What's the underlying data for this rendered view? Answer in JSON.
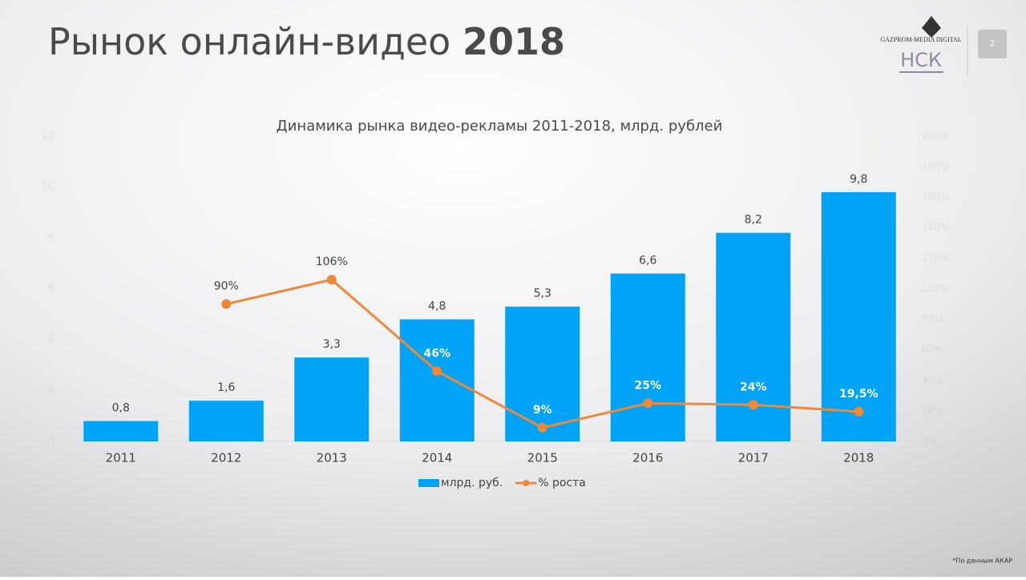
{
  "slide": {
    "title": "Рынок онлайн-видео",
    "title_year": "2018",
    "logo_top": "GAZPROM-MEDIA DIGITAL",
    "logo": "НСК",
    "page_number": "2",
    "footnote": "*По данным АКАР"
  },
  "chart_data": {
    "type": "bar",
    "title": "Динамика рынка видео-рекламы 2011-2018, млрд. рублей",
    "categories": [
      "2011",
      "2012",
      "2013",
      "2014",
      "2015",
      "2016",
      "2017",
      "2018"
    ],
    "series": [
      {
        "name": "млрд. руб.",
        "type": "bar",
        "color": "#00a3f5",
        "values": [
          0.8,
          1.6,
          3.3,
          4.8,
          5.3,
          6.6,
          8.2,
          9.8
        ],
        "value_labels": [
          "0,8",
          "1,6",
          "3,3",
          "4,8",
          "5,3",
          "6,6",
          "8,2",
          "9,8"
        ]
      },
      {
        "name": "% роста",
        "type": "line",
        "axis": "y2",
        "color": "#f0883a",
        "values": [
          null,
          90,
          106,
          46,
          9,
          25,
          24,
          19.5
        ],
        "value_labels": [
          null,
          "90%",
          "106%",
          "46%",
          "9%",
          "25%",
          "24%",
          "19,5%"
        ]
      }
    ],
    "ylim": [
      0,
      12
    ],
    "yticks": [
      0,
      2,
      4,
      6,
      8,
      10,
      12
    ],
    "y2lim": [
      0,
      200
    ],
    "y2ticks": [
      {
        "value": 0,
        "label": "0%"
      },
      {
        "value": 20,
        "label": "20%"
      },
      {
        "value": 40,
        "label": "40%"
      },
      {
        "value": 60,
        "label": "60%"
      },
      {
        "value": 80,
        "label": "80%"
      },
      {
        "value": 100,
        "label": "100%"
      },
      {
        "value": 120,
        "label": "120%"
      },
      {
        "value": 140,
        "label": "140%"
      },
      {
        "value": 160,
        "label": "160%"
      },
      {
        "value": 180,
        "label": "180%"
      },
      {
        "value": 200,
        "label": "200%"
      }
    ],
    "legend": "bottom"
  }
}
